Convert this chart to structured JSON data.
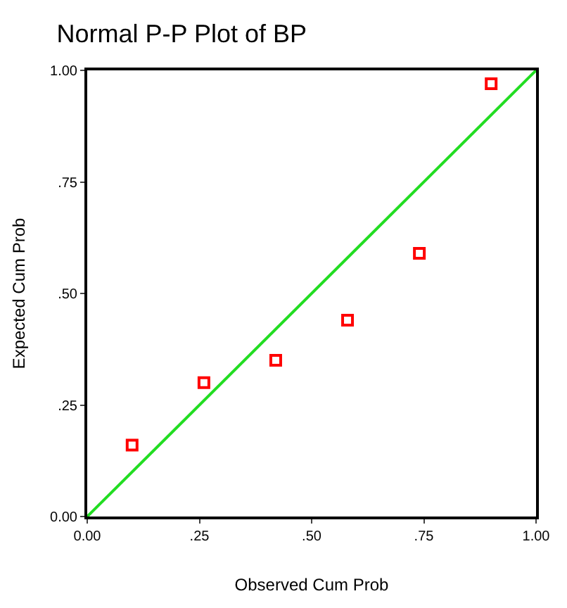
{
  "chart_data": {
    "type": "scatter",
    "title": "Normal P-P Plot of BP",
    "xlabel": "Observed Cum Prob",
    "ylabel": "Expected Cum Prob",
    "xlim": [
      0,
      1
    ],
    "ylim": [
      0,
      1
    ],
    "xticks": [
      {
        "value": 0,
        "label": "0.00"
      },
      {
        "value": 0.25,
        "label": ".25"
      },
      {
        "value": 0.5,
        "label": ".50"
      },
      {
        "value": 0.75,
        "label": ".75"
      },
      {
        "value": 1,
        "label": "1.00"
      }
    ],
    "yticks": [
      {
        "value": 0,
        "label": "0.00"
      },
      {
        "value": 0.25,
        "label": ".25"
      },
      {
        "value": 0.5,
        "label": ".50"
      },
      {
        "value": 0.75,
        "label": ".75"
      },
      {
        "value": 1,
        "label": "1.00"
      }
    ],
    "series": [
      {
        "marker": "square",
        "color": "#ff0000",
        "x": [
          0.1,
          0.26,
          0.42,
          0.58,
          0.74,
          0.9
        ],
        "values": [
          0.16,
          0.3,
          0.35,
          0.44,
          0.59,
          0.97
        ]
      },
      {
        "type": "line",
        "marker": "none",
        "color": "#22dd22",
        "x": [
          0,
          1
        ],
        "values": [
          0,
          1
        ]
      }
    ]
  }
}
